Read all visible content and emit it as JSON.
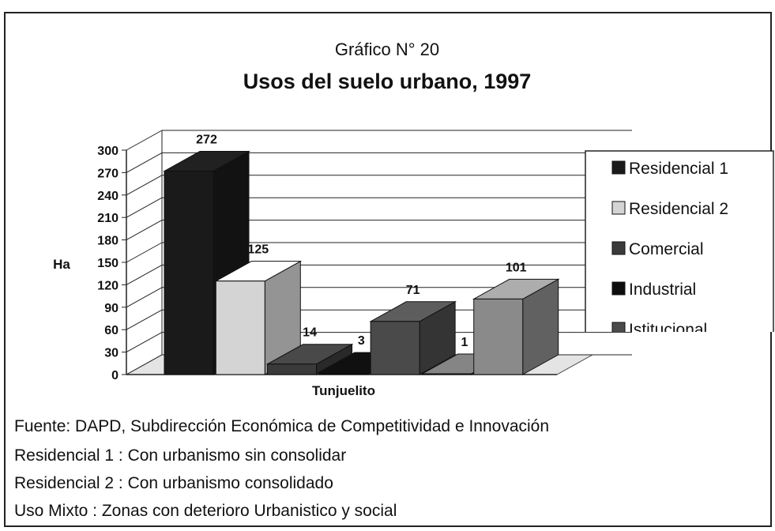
{
  "chart_data": {
    "type": "bar3d",
    "subtitle": "Gráfico N° 20",
    "title": "Usos del suelo urbano, 1997",
    "y_label": "Ha",
    "categories": [
      "Tunjuelito"
    ],
    "series": [
      {
        "name": "Residencial 1",
        "color": "#1a1a1a",
        "values": [
          272
        ]
      },
      {
        "name": "Residencial 2",
        "color": "#d4d4d4",
        "values": [
          125
        ]
      },
      {
        "name": "Comercial",
        "color": "#3a3a3a",
        "values": [
          14
        ]
      },
      {
        "name": "Industrial",
        "color": "#0d0d0d",
        "values": [
          3
        ]
      },
      {
        "name": "Istitucional",
        "color": "#4a4a4a",
        "values": [
          71
        ]
      },
      {
        "name": null,
        "color": "#6a6a6a",
        "values": [
          1
        ]
      },
      {
        "name": null,
        "color": "#8a8a8a",
        "values": [
          101
        ]
      }
    ],
    "ylim": [
      0,
      300
    ],
    "yticks": [
      0,
      30,
      60,
      90,
      120,
      150,
      180,
      210,
      240,
      270,
      300
    ],
    "grid": true,
    "legend": "right"
  },
  "notes": [
    "Fuente: DAPD, Subdirección Económica de Competitividad e Innovación",
    "Residencial 1 : Con urbanismo sin consolidar",
    "Residencial 2 : Con urbanismo consolidado",
    "Uso Mixto :  Zonas con deterioro Urbanistico y social"
  ]
}
